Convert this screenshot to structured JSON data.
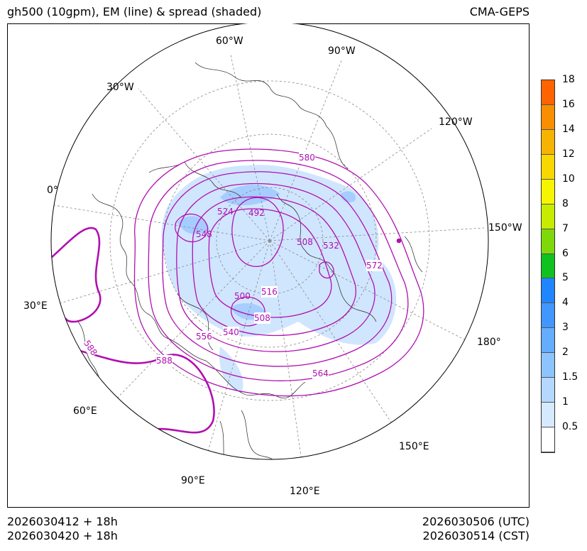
{
  "title_left": "gh500 (10gpm), EM (line) & spread (shaded)",
  "title_right": "CMA-GEPS",
  "footer": {
    "init_utc": "2026030412 + 18h",
    "init_cst": "2026030420 + 18h",
    "valid_utc": "2026030506 (UTC)",
    "valid_cst": "2026030514 (CST)"
  },
  "longitude_labels": [
    "60°W",
    "90°W",
    "30°W",
    "120°W",
    "0°",
    "150°W",
    "30°E",
    "180°",
    "60°E",
    "150°E",
    "90°E",
    "120°E"
  ],
  "contour_labels": [
    "580",
    "524",
    "492",
    "548",
    "508",
    "532",
    "572",
    "516",
    "500",
    "508",
    "540",
    "556",
    "564",
    "588",
    "588"
  ],
  "colorbar": {
    "levels": [
      "0.5",
      "1",
      "1.5",
      "2",
      "3",
      "4",
      "5",
      "6",
      "7",
      "8",
      "10",
      "12",
      "14",
      "16",
      "18"
    ],
    "colors": [
      "#ffffff",
      "#d6eaff",
      "#b4d8ff",
      "#8cc4ff",
      "#64adff",
      "#4197ff",
      "#1f86ff",
      "#0fc21f",
      "#7fd80a",
      "#c8ec00",
      "#f5f500",
      "#f8d800",
      "#f6b400",
      "#f88e00",
      "#ff6400"
    ]
  },
  "colors": {
    "contour": "#b010b0",
    "contour_thick": "#b010b0",
    "spread_light": "#d0e6ff",
    "spread_mid": "#9cc8ff"
  }
}
